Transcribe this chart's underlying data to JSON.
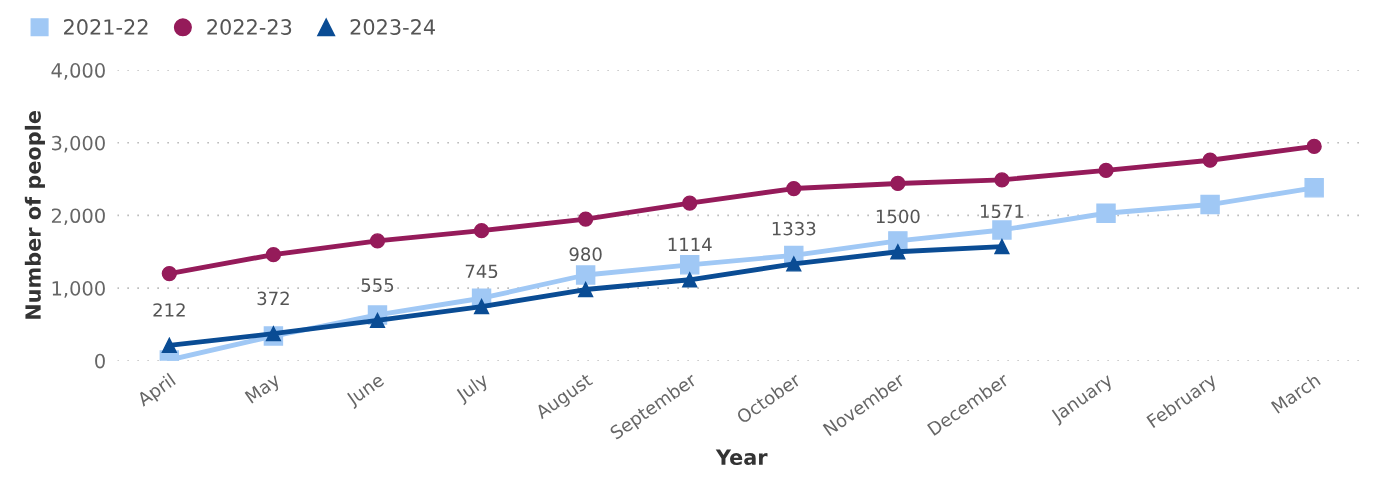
{
  "chart_data": {
    "type": "line",
    "xlabel": "Year",
    "ylabel": "Number of people",
    "categories": [
      "April",
      "May",
      "June",
      "July",
      "August",
      "September",
      "October",
      "November",
      "December",
      "January",
      "February",
      "March"
    ],
    "series": [
      {
        "name": "2021-22",
        "color": "#a0c8f5",
        "marker": "square",
        "values": [
          10,
          340,
          630,
          860,
          1180,
          1320,
          1450,
          1650,
          1800,
          2030,
          2150,
          2380
        ]
      },
      {
        "name": "2022-23",
        "color": "#951b5a",
        "marker": "circle",
        "values": [
          1200,
          1460,
          1650,
          1790,
          1950,
          2170,
          2370,
          2440,
          2490,
          2620,
          2760,
          2950
        ]
      },
      {
        "name": "2023-24",
        "color": "#0a4c94",
        "marker": "triangle",
        "values": [
          212,
          372,
          555,
          745,
          980,
          1114,
          1333,
          1500,
          1571,
          null,
          null,
          null
        ],
        "value_labels": [
          "212",
          "372",
          "555",
          "745",
          "980",
          "1114",
          "1333",
          "1500",
          "1571",
          null,
          null,
          null
        ]
      }
    ],
    "ylim": [
      0,
      4000
    ],
    "yticks": [
      {
        "value": 0,
        "label": "0"
      },
      {
        "value": 1000,
        "label": "1,000"
      },
      {
        "value": 2000,
        "label": "2,000"
      },
      {
        "value": 3000,
        "label": "3,000"
      },
      {
        "value": 4000,
        "label": "4,000"
      }
    ],
    "grid": "y",
    "legend": "top left",
    "line_style": "solid"
  }
}
